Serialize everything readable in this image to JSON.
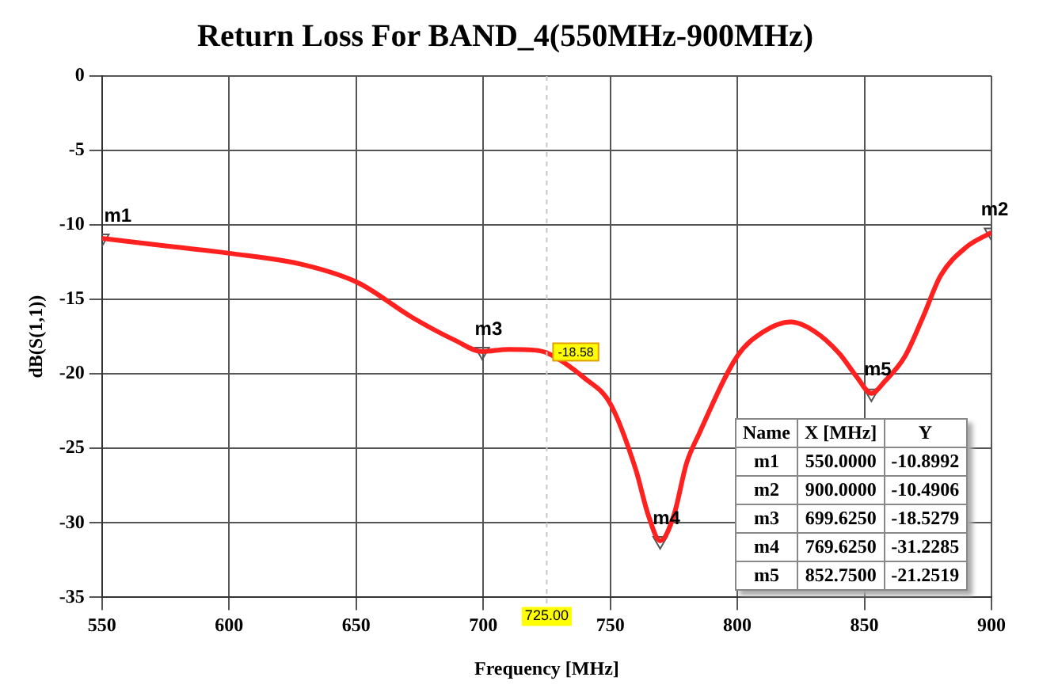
{
  "chart_data": {
    "type": "line",
    "title": "Return Loss For BAND_4(550MHz-900MHz)",
    "xlabel": "Frequency [MHz]",
    "ylabel": "dB(S(1,1))",
    "x": [
      550,
      575,
      600,
      630,
      651,
      672,
      689,
      699.625,
      710,
      720,
      725,
      740,
      750,
      760,
      765,
      769.625,
      775,
      780,
      785,
      800,
      810,
      821,
      830,
      840,
      847,
      852.75,
      858,
      866,
      873,
      880,
      890,
      900
    ],
    "series": [
      {
        "color": "#ff2020",
        "values": [
          -10.9,
          -11.4,
          -11.9,
          -12.7,
          -13.9,
          -16.2,
          -17.75,
          -18.5,
          -18.35,
          -18.4,
          -18.58,
          -20.3,
          -22,
          -26.4,
          -29.5,
          -31.2,
          -29.5,
          -26,
          -24,
          -18.8,
          -17.2,
          -16.5,
          -17.1,
          -18.6,
          -20.2,
          -21.3,
          -20.5,
          -18.8,
          -16.2,
          -13.4,
          -11.5,
          -10.5
        ]
      },
      {
        "type": "scatter",
        "marker": "triangle",
        "color": "#555555",
        "x": [
          550,
          900,
          699.625,
          769.625,
          852.75
        ],
        "values": [
          -10.9,
          -10.5,
          -18.5,
          -31.2,
          -21.3
        ]
      }
    ],
    "xlim": [
      550,
      900
    ],
    "xticks": [
      550,
      600,
      650,
      700,
      750,
      800,
      850,
      900
    ],
    "ylim": [
      -35,
      0
    ],
    "yticks": [
      -35,
      -30,
      -25,
      -20,
      -15,
      -10,
      -5,
      0
    ],
    "grid": true,
    "legend": false,
    "marker": "none",
    "line_style": "solid",
    "ref_lines": [
      {
        "axis": "x",
        "value": 725,
        "label": "725.00"
      }
    ],
    "annotations": [
      {
        "text": "m1",
        "x": 550,
        "y": -10.8992
      },
      {
        "text": "m2",
        "x": 900,
        "y": -10.4906
      },
      {
        "text": "m3",
        "x": 699.625,
        "y": -18.5279
      },
      {
        "text": "m4",
        "x": 769.625,
        "y": -31.2285
      },
      {
        "text": "m5",
        "x": 852.75,
        "y": -21.2519
      },
      {
        "text": "-18.58",
        "x": 725,
        "y": -18.58
      },
      "Name",
      "X [MHz]",
      "Y",
      "m1",
      "550.0000",
      "-10.8992",
      "m2",
      "900.0000",
      "-10.4906",
      "m3",
      "699.6250",
      "-18.5279",
      "m4",
      "769.6250",
      "-31.2285",
      "m5",
      "852.7500",
      "-21.2519"
    ]
  }
}
